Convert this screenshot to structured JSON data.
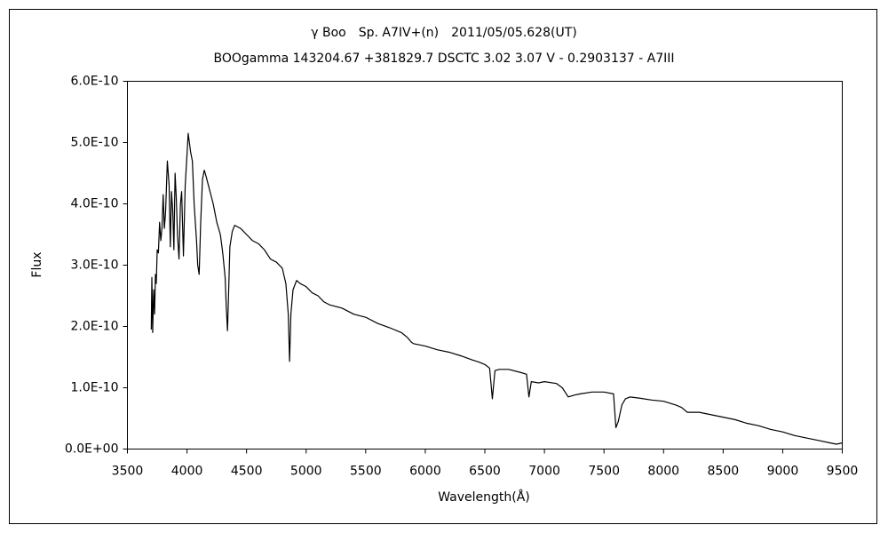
{
  "chart_data": {
    "type": "line",
    "title": "γ Boo　Sp. A7IV+(n)　2011/05/05.628(UT)",
    "subtitle": "BOOgamma 143204.67 +381829.7 DSCTC 3.02 3.07 V - 0.2903137 - A7III",
    "x_label": "Wavelength(Å)",
    "y_label": "Flux",
    "color": "#000000",
    "grid": false,
    "xlim": [
      3500,
      9500
    ],
    "xticks": [
      3500,
      4000,
      4500,
      5000,
      5500,
      6000,
      6500,
      7000,
      7500,
      8000,
      8500,
      9000,
      9500
    ],
    "ylim": [
      0,
      6e-10
    ],
    "yticks": [
      {
        "value": 0,
        "label": "0.0E+00"
      },
      {
        "value": 1e-10,
        "label": "1.0E-10"
      },
      {
        "value": 2e-10,
        "label": "2.0E-10"
      },
      {
        "value": 3e-10,
        "label": "3.0E-10"
      },
      {
        "value": 4e-10,
        "label": "4.0E-10"
      },
      {
        "value": 5e-10,
        "label": "5.0E-10"
      },
      {
        "value": 6e-10,
        "label": "6.0E-10"
      }
    ],
    "x": [
      3700,
      3705,
      3712,
      3720,
      3728,
      3735,
      3742,
      3750,
      3760,
      3770,
      3780,
      3790,
      3800,
      3810,
      3820,
      3835,
      3850,
      3860,
      3870,
      3880,
      3890,
      3900,
      3910,
      3920,
      3933,
      3945,
      3955,
      3970,
      3985,
      4000,
      4010,
      4020,
      4030,
      4045,
      4060,
      4080,
      4090,
      4102,
      4115,
      4130,
      4145,
      4160,
      4180,
      4200,
      4220,
      4250,
      4280,
      4300,
      4320,
      4330,
      4340,
      4350,
      4360,
      4380,
      4400,
      4450,
      4500,
      4550,
      4600,
      4650,
      4700,
      4750,
      4800,
      4830,
      4850,
      4861,
      4872,
      4890,
      4920,
      4950,
      5000,
      5050,
      5100,
      5150,
      5200,
      5300,
      5400,
      5500,
      5600,
      5700,
      5800,
      5850,
      5880,
      5900,
      6000,
      6100,
      6200,
      6300,
      6400,
      6450,
      6500,
      6540,
      6563,
      6585,
      6620,
      6700,
      6800,
      6850,
      6870,
      6890,
      6950,
      7000,
      7100,
      7150,
      7200,
      7250,
      7300,
      7400,
      7500,
      7580,
      7600,
      7620,
      7650,
      7680,
      7720,
      7800,
      7900,
      8000,
      8100,
      8150,
      8200,
      8300,
      8400,
      8500,
      8600,
      8700,
      8800,
      8900,
      9000,
      9100,
      9200,
      9300,
      9400,
      9450,
      9500
    ],
    "values": [
      1.95e-10,
      2.8e-10,
      1.9e-10,
      2.6e-10,
      2.2e-10,
      2.85e-10,
      2.7e-10,
      3.25e-10,
      3.2e-10,
      3.7e-10,
      3.4e-10,
      3.6e-10,
      4.15e-10,
      3.6e-10,
      3.85e-10,
      4.7e-10,
      4.3e-10,
      3.3e-10,
      4.2e-10,
      3.9e-10,
      3.25e-10,
      4.5e-10,
      4.1e-10,
      3.5e-10,
      3.1e-10,
      4e-10,
      4.2e-10,
      3.15e-10,
      4.3e-10,
      4.8e-10,
      5.15e-10,
      5e-10,
      4.85e-10,
      4.7e-10,
      4e-10,
      3.4e-10,
      3e-10,
      2.85e-10,
      3.7e-10,
      4.4e-10,
      4.55e-10,
      4.45e-10,
      4.3e-10,
      4.15e-10,
      4e-10,
      3.7e-10,
      3.5e-10,
      3.2e-10,
      2.8e-10,
      2.3e-10,
      1.93e-10,
      2.6e-10,
      3.3e-10,
      3.55e-10,
      3.65e-10,
      3.6e-10,
      3.5e-10,
      3.4e-10,
      3.35e-10,
      3.25e-10,
      3.1e-10,
      3.05e-10,
      2.95e-10,
      2.7e-10,
      2.2e-10,
      1.43e-10,
      2.2e-10,
      2.6e-10,
      2.75e-10,
      2.7e-10,
      2.65e-10,
      2.55e-10,
      2.5e-10,
      2.4e-10,
      2.35e-10,
      2.3e-10,
      2.2e-10,
      2.15e-10,
      2.05e-10,
      1.98e-10,
      1.9e-10,
      1.82e-10,
      1.75e-10,
      1.72e-10,
      1.68e-10,
      1.62e-10,
      1.58e-10,
      1.52e-10,
      1.45e-10,
      1.42e-10,
      1.38e-10,
      1.32e-10,
      8.2e-11,
      1.28e-10,
      1.3e-10,
      1.3e-10,
      1.25e-10,
      1.22e-10,
      8.5e-11,
      1.1e-10,
      1.08e-10,
      1.1e-10,
      1.07e-10,
      1e-10,
      8.5e-11,
      8.8e-11,
      9e-11,
      9.3e-11,
      9.3e-11,
      9e-11,
      3.5e-11,
      4.5e-11,
      7.2e-11,
      8.2e-11,
      8.5e-11,
      8.3e-11,
      8e-11,
      7.8e-11,
      7.2e-11,
      6.8e-11,
      6e-11,
      6e-11,
      5.6e-11,
      5.2e-11,
      4.8e-11,
      4.2e-11,
      3.8e-11,
      3.2e-11,
      2.8e-11,
      2.2e-11,
      1.8e-11,
      1.4e-11,
      1e-11,
      8e-12,
      1e-11
    ]
  }
}
